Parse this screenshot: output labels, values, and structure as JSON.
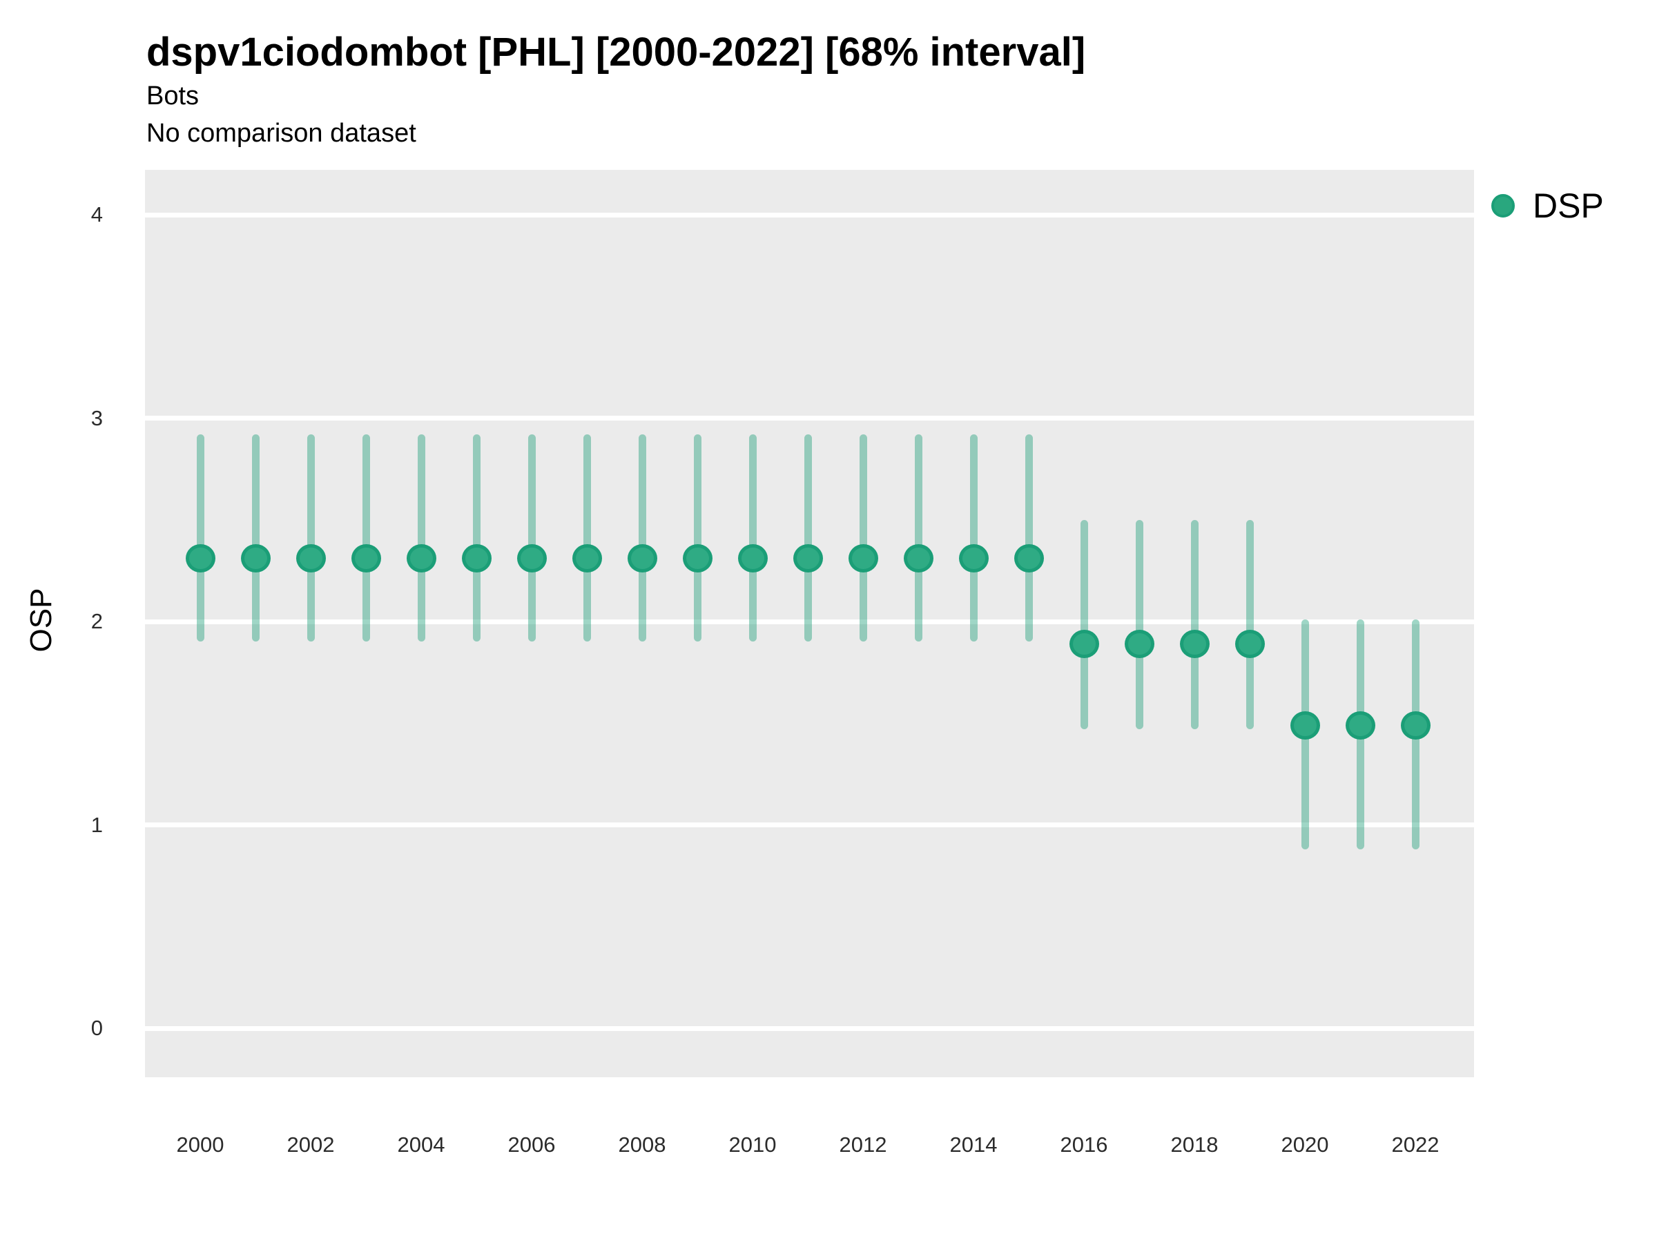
{
  "title": "dspv1ciodombot [PHL] [2000-2022] [68% interval]",
  "subtitle": "Bots",
  "subtitle2": "No comparison dataset",
  "ylabel": "OSP",
  "legend": {
    "label": "DSP"
  },
  "colors": {
    "point_fill": "#2fab84",
    "point_ring": "#1b9e77",
    "interval_bar": "#1b9e77",
    "interval_bar_alpha": 0.42,
    "legend_dot": "#29a77e",
    "panel_background": "#ebebeb",
    "gridline": "#ffffff",
    "text": "#000000",
    "tick_text": "#2b2b2b"
  },
  "chart_data": {
    "type": "scatter",
    "subtype": "pointrange",
    "title": "dspv1ciodombot [PHL] [2000-2022] [68% interval]",
    "subtitle_lines": [
      "Bots",
      "No comparison dataset"
    ],
    "xlabel": "",
    "ylabel": "OSP",
    "interval": "68%",
    "legend_position": "right-top",
    "grid": "horizontal-white-on-gray",
    "xlim": [
      1999,
      2023
    ],
    "ylim": [
      -0.24,
      4.22
    ],
    "y_ticks": [
      0,
      1,
      2,
      3,
      4
    ],
    "x_tick_labels": [
      "2000",
      "2002",
      "2004",
      "2006",
      "2008",
      "2010",
      "2012",
      "2014",
      "2016",
      "2018",
      "2020",
      "2022"
    ],
    "series": [
      {
        "name": "DSP",
        "points": [
          {
            "year": 2000,
            "value": 2.31,
            "lo": 1.9,
            "hi": 2.92
          },
          {
            "year": 2001,
            "value": 2.31,
            "lo": 1.9,
            "hi": 2.92
          },
          {
            "year": 2002,
            "value": 2.31,
            "lo": 1.9,
            "hi": 2.92
          },
          {
            "year": 2003,
            "value": 2.31,
            "lo": 1.9,
            "hi": 2.92
          },
          {
            "year": 2004,
            "value": 2.31,
            "lo": 1.9,
            "hi": 2.92
          },
          {
            "year": 2005,
            "value": 2.31,
            "lo": 1.9,
            "hi": 2.92
          },
          {
            "year": 2006,
            "value": 2.31,
            "lo": 1.9,
            "hi": 2.92
          },
          {
            "year": 2007,
            "value": 2.31,
            "lo": 1.9,
            "hi": 2.92
          },
          {
            "year": 2008,
            "value": 2.31,
            "lo": 1.9,
            "hi": 2.92
          },
          {
            "year": 2009,
            "value": 2.31,
            "lo": 1.9,
            "hi": 2.92
          },
          {
            "year": 2010,
            "value": 2.31,
            "lo": 1.9,
            "hi": 2.92
          },
          {
            "year": 2011,
            "value": 2.31,
            "lo": 1.9,
            "hi": 2.92
          },
          {
            "year": 2012,
            "value": 2.31,
            "lo": 1.9,
            "hi": 2.92
          },
          {
            "year": 2013,
            "value": 2.31,
            "lo": 1.9,
            "hi": 2.92
          },
          {
            "year": 2014,
            "value": 2.31,
            "lo": 1.9,
            "hi": 2.92
          },
          {
            "year": 2015,
            "value": 2.31,
            "lo": 1.9,
            "hi": 2.92
          },
          {
            "year": 2016,
            "value": 1.89,
            "lo": 1.47,
            "hi": 2.5
          },
          {
            "year": 2017,
            "value": 1.89,
            "lo": 1.47,
            "hi": 2.5
          },
          {
            "year": 2018,
            "value": 1.89,
            "lo": 1.47,
            "hi": 2.5
          },
          {
            "year": 2019,
            "value": 1.89,
            "lo": 1.47,
            "hi": 2.5
          },
          {
            "year": 2020,
            "value": 1.49,
            "lo": 0.88,
            "hi": 2.01
          },
          {
            "year": 2021,
            "value": 1.49,
            "lo": 0.88,
            "hi": 2.01
          },
          {
            "year": 2022,
            "value": 1.49,
            "lo": 0.88,
            "hi": 2.01
          }
        ]
      }
    ]
  }
}
